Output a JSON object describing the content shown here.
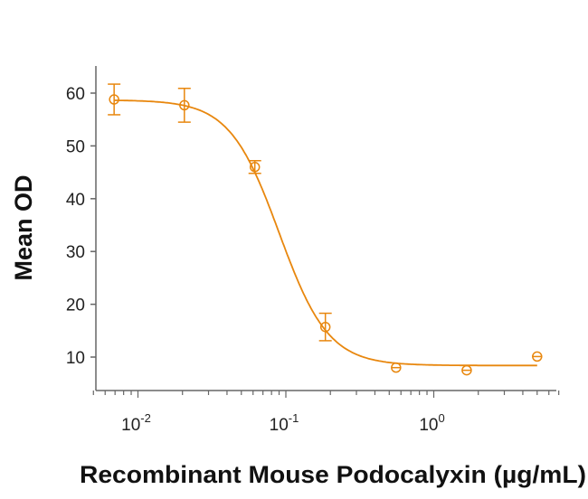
{
  "chart_data": {
    "type": "scatter",
    "title": "",
    "xlabel": "Recombinant Mouse Podocalyxin (µg/mL)",
    "ylabel": "Mean OD",
    "xscale": "log",
    "xlim": [
      0.005,
      7
    ],
    "ylim": [
      3,
      65
    ],
    "x_ticks": [
      {
        "value": 0.01,
        "base": "10",
        "exp": "-2"
      },
      {
        "value": 0.1,
        "base": "10",
        "exp": "-1"
      },
      {
        "value": 1,
        "base": "10",
        "exp": "0"
      }
    ],
    "y_ticks": [
      10,
      20,
      30,
      40,
      50,
      60
    ],
    "grid": false,
    "series": [
      {
        "name": "Mean OD",
        "x": [
          0.0069,
          0.0206,
          0.0617,
          0.185,
          0.556,
          1.67,
          5.0
        ],
        "y": [
          58.8,
          57.7,
          46.0,
          15.7,
          8.0,
          7.5,
          10.1
        ],
        "error": [
          2.9,
          3.2,
          1.2,
          2.6,
          0.6,
          0.3,
          0.4
        ],
        "fit": {
          "model": "4PL",
          "top": 58.7,
          "bottom": 8.4,
          "ec50": 0.09,
          "hill": 2.6
        }
      }
    ],
    "color": "#E8870E"
  }
}
